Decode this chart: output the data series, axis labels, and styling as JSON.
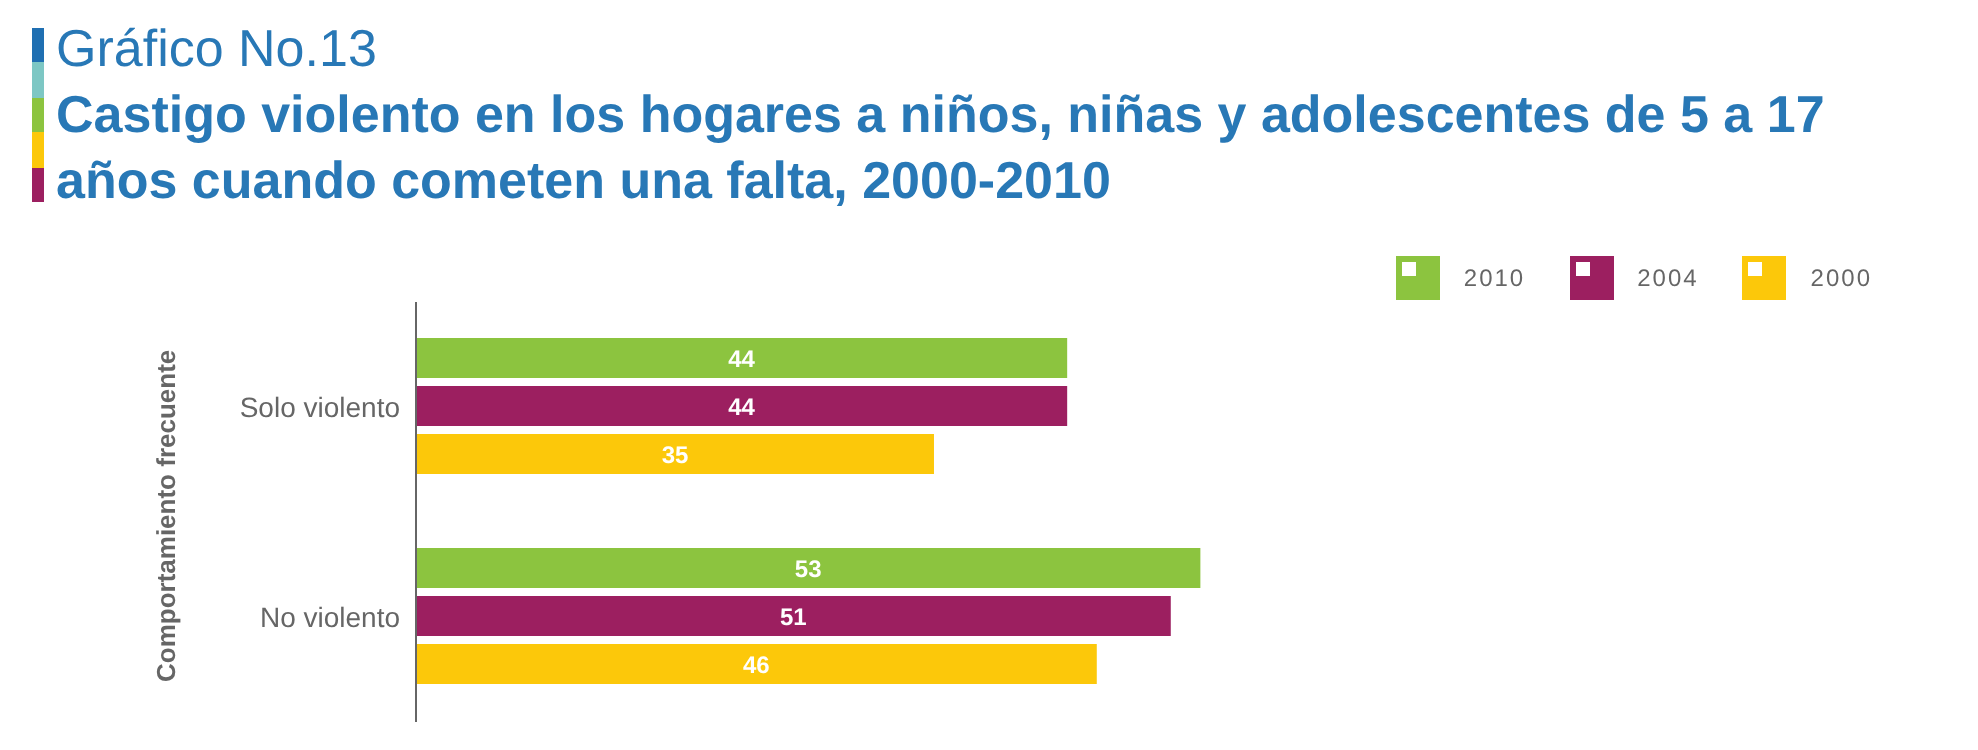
{
  "chart_data": {
    "type": "bar",
    "orientation": "horizontal",
    "title": "Gráfico No.13",
    "subtitle": "Castigo violento en los hogares a niños, niñas y adolescentes de 5 a 17 años cuando cometen una falta, 2000-2010",
    "ylabel": "Comportamiento frecuente",
    "categories": [
      "Solo violento",
      "No violento"
    ],
    "series": [
      {
        "name": "2010",
        "color": "#8cc43f",
        "values": [
          44,
          53
        ]
      },
      {
        "name": "2004",
        "color": "#9c1f60",
        "values": [
          44,
          51
        ]
      },
      {
        "name": "2000",
        "color": "#fcc80a",
        "values": [
          35,
          46
        ]
      }
    ],
    "data_labels": true,
    "legend": "top right"
  }
}
